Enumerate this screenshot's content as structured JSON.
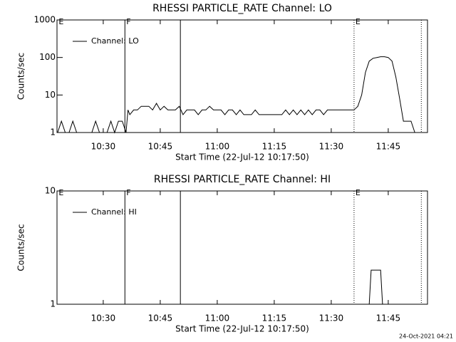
{
  "chart_data": [
    {
      "type": "line",
      "title": "RHESSI PARTICLE_RATE Channel: LO",
      "xlabel": "Start Time (22-Jul-12 10:17:50)",
      "ylabel": "Counts/sec",
      "xlim": [
        17.83,
        115.33
      ],
      "xticks": [
        {
          "value": 30,
          "label": "10:30"
        },
        {
          "value": 45,
          "label": "10:45"
        },
        {
          "value": 60,
          "label": "11:00"
        },
        {
          "value": 75,
          "label": "11:15"
        },
        {
          "value": 90,
          "label": "11:30"
        },
        {
          "value": 105,
          "label": "11:45"
        }
      ],
      "ylim": [
        1,
        1000
      ],
      "yticks": [
        1,
        10,
        100,
        1000
      ],
      "log": true,
      "legend": "upper left",
      "markers": [
        {
          "x": 17.9,
          "label": "E"
        },
        {
          "x": 35.7,
          "label": "F",
          "line": "solid"
        },
        {
          "x": 50.3,
          "line": "solid"
        },
        {
          "x": 96,
          "label": "E",
          "line": "dotted"
        },
        {
          "x": 113.7,
          "line": "dotted"
        }
      ],
      "series": [
        {
          "name": "Channel: LO",
          "color": "#000000",
          "x": [
            18,
            19,
            20,
            21,
            22,
            23,
            24,
            25,
            26,
            27,
            28,
            29,
            30,
            31,
            32,
            33,
            34,
            35,
            36,
            36.5,
            37,
            38,
            39,
            40,
            41,
            42,
            43,
            44,
            45,
            46,
            47,
            48,
            49,
            50,
            51,
            52,
            53,
            54,
            55,
            56,
            57,
            58,
            59,
            60,
            61,
            62,
            63,
            64,
            65,
            66,
            67,
            68,
            69,
            70,
            71,
            72,
            73,
            74,
            75,
            76,
            77,
            78,
            79,
            80,
            81,
            82,
            83,
            84,
            85,
            86,
            87,
            88,
            89,
            90,
            91,
            92,
            93,
            94,
            95,
            96,
            97,
            98,
            99,
            100,
            101,
            102,
            103,
            104,
            105,
            106,
            107,
            108,
            109,
            110,
            111,
            112,
            113
          ],
          "values": [
            1,
            2,
            1,
            1,
            2,
            1,
            1,
            1,
            1,
            1,
            2,
            1,
            1,
            1,
            2,
            1,
            2,
            2,
            1,
            4,
            3,
            4,
            4,
            5,
            5,
            5,
            4,
            6,
            4,
            5,
            4,
            4,
            4,
            5,
            3,
            4,
            4,
            4,
            3,
            4,
            4,
            5,
            4,
            4,
            4,
            3,
            4,
            4,
            3,
            4,
            3,
            3,
            3,
            4,
            3,
            3,
            3,
            3,
            3,
            3,
            3,
            4,
            3,
            4,
            3,
            4,
            3,
            4,
            3,
            4,
            4,
            3,
            4,
            4,
            4,
            4,
            4,
            4,
            4,
            4,
            5,
            10,
            40,
            80,
            95,
            100,
            105,
            105,
            100,
            80,
            30,
            8,
            2,
            2,
            2,
            1,
            1
          ]
        }
      ]
    },
    {
      "type": "line",
      "title": "RHESSI PARTICLE_RATE Channel: HI",
      "xlabel": "Start Time (22-Jul-12 10:17:50)",
      "ylabel": "Counts/sec",
      "xlim": [
        17.83,
        115.33
      ],
      "xticks": [
        {
          "value": 30,
          "label": "10:30"
        },
        {
          "value": 45,
          "label": "10:45"
        },
        {
          "value": 60,
          "label": "11:00"
        },
        {
          "value": 75,
          "label": "11:15"
        },
        {
          "value": 90,
          "label": "11:30"
        },
        {
          "value": 105,
          "label": "11:45"
        }
      ],
      "ylim": [
        1,
        10
      ],
      "yticks": [
        1,
        10
      ],
      "log": true,
      "legend": "upper left",
      "markers": [
        {
          "x": 17.9,
          "label": "E"
        },
        {
          "x": 35.7,
          "label": "F",
          "line": "solid"
        },
        {
          "x": 50.3,
          "line": "solid"
        },
        {
          "x": 96,
          "label": "E",
          "line": "dotted"
        },
        {
          "x": 113.7,
          "line": "dotted"
        }
      ],
      "series": [
        {
          "name": "Channel: HI",
          "color": "#000000",
          "x": [
            18,
            99,
            100,
            100.5,
            101,
            102,
            103,
            103.5,
            113
          ],
          "values": [
            1,
            1,
            1,
            2,
            2,
            2,
            2,
            1,
            1
          ]
        }
      ]
    }
  ],
  "footer": "24-Oct-2021 04:21"
}
